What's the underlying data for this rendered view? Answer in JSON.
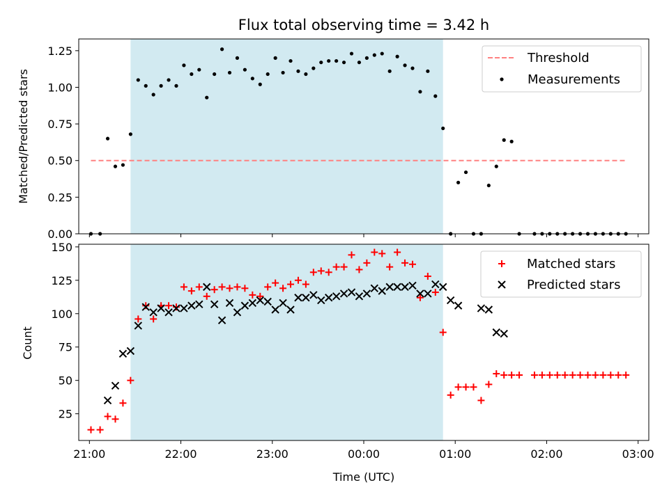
{
  "chart_data": [
    {
      "type": "scatter",
      "title": "Flux total observing time = 3.42 h",
      "xlabel": "",
      "ylabel": "Matched/Predicted stars",
      "xlim": [
        "20:53",
        "03:07"
      ],
      "ylim": [
        0,
        1.33
      ],
      "xticks": [
        "21:00",
        "22:00",
        "23:00",
        "00:00",
        "01:00",
        "02:00",
        "03:00"
      ],
      "yticks": [
        0.0,
        0.25,
        0.5,
        0.75,
        1.0,
        1.25
      ],
      "ytick_labels": [
        "0.00",
        "0.25",
        "0.50",
        "0.75",
        "1.00",
        "1.25"
      ],
      "shaded_region": {
        "x_start": "21:27",
        "x_end": "00:52",
        "color": "#add8e6"
      },
      "legend_position": "upper right",
      "series": [
        {
          "name": "Threshold",
          "kind": "dashed-line",
          "color": "#ff8080",
          "x": [
            "21:01",
            "02:53"
          ],
          "y": [
            0.5,
            0.5
          ]
        },
        {
          "name": "Measurements",
          "kind": "points",
          "color": "#000000",
          "x": [
            "21:01",
            "21:07",
            "21:12",
            "21:17",
            "21:22",
            "21:27",
            "21:32",
            "21:37",
            "21:42",
            "21:47",
            "21:52",
            "21:57",
            "22:02",
            "22:07",
            "22:12",
            "22:17",
            "22:22",
            "22:27",
            "22:32",
            "22:37",
            "22:42",
            "22:47",
            "22:52",
            "22:57",
            "23:02",
            "23:07",
            "23:12",
            "23:17",
            "23:22",
            "23:27",
            "23:32",
            "23:37",
            "23:42",
            "23:47",
            "23:52",
            "23:57",
            "00:02",
            "00:07",
            "00:12",
            "00:17",
            "00:22",
            "00:27",
            "00:32",
            "00:37",
            "00:42",
            "00:47",
            "00:52",
            "00:57",
            "01:02",
            "01:07",
            "01:12",
            "01:17",
            "01:22",
            "01:27",
            "01:32",
            "01:37",
            "01:42",
            "01:52",
            "01:57",
            "02:02",
            "02:07",
            "02:12",
            "02:17",
            "02:22",
            "02:27",
            "02:32",
            "02:37",
            "02:42",
            "02:47",
            "02:52"
          ],
          "y": [
            0,
            0,
            0.65,
            0.46,
            0.47,
            0.68,
            1.05,
            1.01,
            0.95,
            1.01,
            1.05,
            1.01,
            1.15,
            1.09,
            1.12,
            0.93,
            1.09,
            1.26,
            1.1,
            1.2,
            1.12,
            1.06,
            1.02,
            1.09,
            1.2,
            1.1,
            1.18,
            1.11,
            1.09,
            1.13,
            1.17,
            1.18,
            1.18,
            1.17,
            1.23,
            1.17,
            1.2,
            1.22,
            1.23,
            1.11,
            1.21,
            1.15,
            1.13,
            0.97,
            1.11,
            0.94,
            0.72,
            0,
            0.35,
            0.42,
            0,
            0,
            0.33,
            0.46,
            0.64,
            0.63,
            0,
            0,
            0,
            0,
            0,
            0,
            0,
            0,
            0,
            0,
            0,
            0,
            0,
            0
          ]
        }
      ]
    },
    {
      "type": "scatter",
      "title": "",
      "xlabel": "Time (UTC)",
      "ylabel": "Count",
      "xlim": [
        "20:53",
        "03:07"
      ],
      "ylim": [
        5,
        152
      ],
      "xticks": [
        "21:00",
        "22:00",
        "23:00",
        "00:00",
        "01:00",
        "02:00",
        "03:00"
      ],
      "yticks": [
        25,
        50,
        75,
        100,
        125,
        150
      ],
      "ytick_labels": [
        "25",
        "50",
        "75",
        "100",
        "125",
        "150"
      ],
      "shaded_region": {
        "x_start": "21:27",
        "x_end": "00:52",
        "color": "#add8e6"
      },
      "legend_position": "upper right",
      "series": [
        {
          "name": "Matched stars",
          "kind": "plus",
          "color": "#ff0000",
          "x": [
            "21:01",
            "21:07",
            "21:12",
            "21:17",
            "21:22",
            "21:27",
            "21:32",
            "21:37",
            "21:42",
            "21:47",
            "21:52",
            "21:57",
            "22:02",
            "22:07",
            "22:12",
            "22:17",
            "22:22",
            "22:27",
            "22:32",
            "22:37",
            "22:42",
            "22:47",
            "22:52",
            "22:57",
            "23:02",
            "23:07",
            "23:12",
            "23:17",
            "23:22",
            "23:27",
            "23:32",
            "23:37",
            "23:42",
            "23:47",
            "23:52",
            "23:57",
            "00:02",
            "00:07",
            "00:12",
            "00:17",
            "00:22",
            "00:27",
            "00:32",
            "00:37",
            "00:42",
            "00:47",
            "00:52",
            "00:57",
            "01:02",
            "01:07",
            "01:12",
            "01:17",
            "01:22",
            "01:27",
            "01:32",
            "01:37",
            "01:42",
            "01:52",
            "01:57",
            "02:02",
            "02:07",
            "02:12",
            "02:17",
            "02:22",
            "02:27",
            "02:32",
            "02:37",
            "02:42",
            "02:47",
            "02:52"
          ],
          "y": [
            13,
            13,
            23,
            21,
            33,
            50,
            96,
            106,
            96,
            106,
            106,
            105,
            120,
            117,
            120,
            113,
            118,
            120,
            119,
            120,
            119,
            114,
            113,
            120,
            123,
            119,
            122,
            125,
            122,
            131,
            132,
            131,
            135,
            135,
            144,
            133,
            138,
            146,
            145,
            135,
            146,
            138,
            137,
            112,
            128,
            116,
            86,
            39,
            45,
            45,
            45,
            35,
            47,
            55,
            54,
            54,
            54,
            54,
            54,
            54,
            54,
            54,
            54,
            54,
            54,
            54,
            54,
            54,
            54,
            54
          ]
        },
        {
          "name": "Predicted stars",
          "kind": "cross",
          "color": "#000000",
          "x": [
            "21:12",
            "21:17",
            "21:22",
            "21:27",
            "21:32",
            "21:37",
            "21:42",
            "21:47",
            "21:52",
            "21:57",
            "22:02",
            "22:07",
            "22:12",
            "22:17",
            "22:22",
            "22:27",
            "22:32",
            "22:37",
            "22:42",
            "22:47",
            "22:52",
            "22:57",
            "23:02",
            "23:07",
            "23:12",
            "23:17",
            "23:22",
            "23:27",
            "23:32",
            "23:37",
            "23:42",
            "23:47",
            "23:52",
            "23:57",
            "00:02",
            "00:07",
            "00:12",
            "00:17",
            "00:22",
            "00:27",
            "00:32",
            "00:37",
            "00:42",
            "00:47",
            "00:52",
            "00:57",
            "01:02",
            "01:17",
            "01:22",
            "01:27",
            "01:32"
          ],
          "y": [
            35,
            46,
            70,
            72,
            91,
            105,
            101,
            104,
            101,
            104,
            104,
            106,
            107,
            120,
            107,
            95,
            108,
            101,
            106,
            108,
            110,
            109,
            103,
            108,
            103,
            112,
            112,
            114,
            110,
            112,
            113,
            115,
            116,
            113,
            115,
            119,
            117,
            120,
            120,
            120,
            121,
            115,
            115,
            122,
            120,
            110,
            106,
            104,
            103,
            86,
            85
          ]
        }
      ]
    }
  ]
}
